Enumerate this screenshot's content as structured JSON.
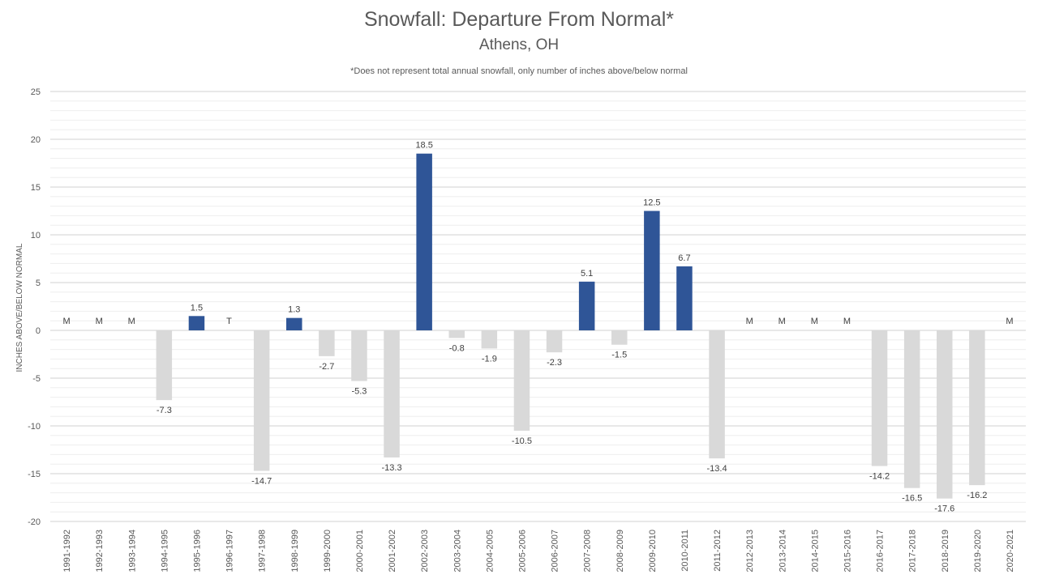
{
  "chart_data": {
    "type": "bar",
    "title": "Snowfall: Departure From Normal*",
    "subtitle": "Athens, OH",
    "note": "*Does not represent  total annual snowfall, only number of inches above/below normal",
    "ylabel": "INCHES ABOVE/BELOW NORMAL",
    "xlabel": "",
    "ylim": [
      -20,
      25
    ],
    "yticks": [
      25,
      20,
      15,
      10,
      5,
      0,
      -5,
      -10,
      -15,
      -20
    ],
    "grid": true,
    "colors": {
      "positive": "#2F5597",
      "negative": "#D9D9D9",
      "grid": "#D9D9D9"
    },
    "categories": [
      "1991-1992",
      "1992-1993",
      "1993-1994",
      "1994-1995",
      "1995-1996",
      "1996-1997",
      "1997-1998",
      "1998-1999",
      "1999-2000",
      "2000-2001",
      "2001-2002",
      "2002-2003",
      "2003-2004",
      "2004-2005",
      "2005-2006",
      "2006-2007",
      "2007-2008",
      "2008-2009",
      "2009-2010",
      "2010-2011",
      "2011-2012",
      "2012-2013",
      "2013-2014",
      "2014-2015",
      "2015-2016",
      "2016-2017",
      "2017-2018",
      "2018-2019",
      "2019-2020",
      "2020-2021"
    ],
    "values": [
      null,
      null,
      null,
      -7.3,
      1.5,
      null,
      -14.7,
      1.3,
      -2.7,
      -5.3,
      -13.3,
      18.5,
      -0.8,
      -1.9,
      -10.5,
      -2.3,
      5.1,
      -1.5,
      12.5,
      6.7,
      -13.4,
      null,
      null,
      null,
      null,
      -14.2,
      -16.5,
      -17.6,
      -16.2,
      null
    ],
    "labels": [
      "M",
      "M",
      "M",
      "-7.3",
      "1.5",
      "T",
      "-14.7",
      "1.3",
      "-2.7",
      "-5.3",
      "-13.3",
      "18.5",
      "-0.8",
      "-1.9",
      "-10.5",
      "-2.3",
      "5.1",
      "-1.5",
      "12.5",
      "6.7",
      "-13.4",
      "M",
      "M",
      "M",
      "M",
      "-14.2",
      "-16.5",
      "-17.6",
      "-16.2",
      "M"
    ]
  }
}
